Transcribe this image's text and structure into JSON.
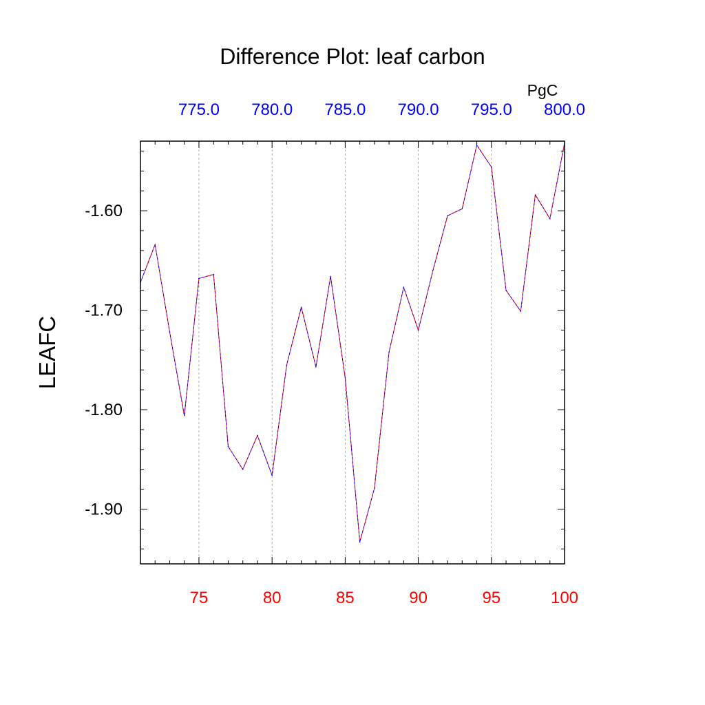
{
  "chart_data": {
    "type": "line",
    "title": "Difference Plot: leaf carbon",
    "ylabel": "LEAFC",
    "xlabel": "",
    "top_axis_unit_label": "PgC",
    "xlim": [
      71,
      100
    ],
    "ylim": [
      -1.955,
      -1.53
    ],
    "bottom_ticks": [
      "75",
      "80",
      "85",
      "90",
      "95",
      "100"
    ],
    "bottom_tick_values": [
      75,
      80,
      85,
      90,
      95,
      100
    ],
    "top_ticks": [
      "775.0",
      "780.0",
      "785.0",
      "790.0",
      "795.0",
      "800.0"
    ],
    "top_tick_values": [
      75,
      80,
      85,
      90,
      95,
      100
    ],
    "y_ticks": [
      "-1.60",
      "-1.70",
      "-1.80",
      "-1.90"
    ],
    "y_tick_values": [
      -1.6,
      -1.7,
      -1.8,
      -1.9
    ],
    "grid": "vertical dashed at major x ticks",
    "colors": {
      "bottom_tick_labels": "#ff0000",
      "top_tick_labels": "#0000ff",
      "line_primary": "#ff0000",
      "line_secondary": "#0000ff",
      "grid": "#999999",
      "axis": "#000000"
    },
    "x": [
      71,
      72,
      73,
      74,
      75,
      76,
      77,
      78,
      79,
      80,
      81,
      82,
      83,
      84,
      85,
      86,
      87,
      88,
      89,
      90,
      91,
      92,
      93,
      94,
      95,
      96,
      97,
      98,
      99,
      100
    ],
    "series": [
      {
        "values": [
          -1.672,
          -1.634,
          -1.722,
          -1.806,
          -1.668,
          -1.664,
          -1.837,
          -1.86,
          -1.826,
          -1.866,
          -1.755,
          -1.697,
          -1.757,
          -1.666,
          -1.768,
          -1.933,
          -1.879,
          -1.742,
          -1.677,
          -1.72,
          -1.66,
          -1.605,
          -1.598,
          -1.534,
          -1.556,
          -1.68,
          -1.701,
          -1.584,
          -1.608,
          -1.532
        ]
      }
    ]
  }
}
